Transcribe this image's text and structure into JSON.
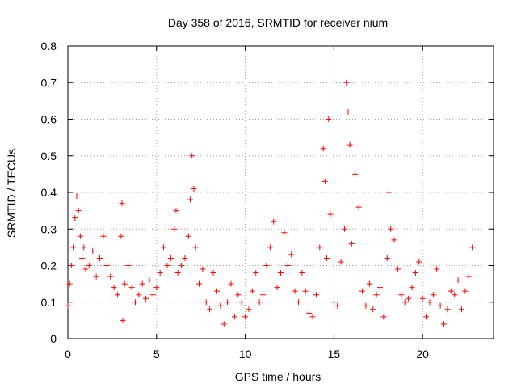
{
  "chart_data": {
    "type": "scatter",
    "title": "Day 358 of 2016, SRMTID for receiver nium",
    "xlabel": "GPS time / hours",
    "ylabel": "SRMTID / TECUs",
    "xlim": [
      0,
      24
    ],
    "ylim": [
      0,
      0.8
    ],
    "xticks": [
      0,
      5,
      10,
      15,
      20
    ],
    "yticks": [
      0,
      0.1,
      0.2,
      0.3,
      0.4,
      0.5,
      0.6,
      0.7,
      0.8
    ],
    "xtick_labels": [
      "0",
      "5",
      "10",
      "15",
      "20"
    ],
    "ytick_labels": [
      "0",
      "0.1",
      "0.2",
      "0.3",
      "0.4",
      "0.5",
      "0.6",
      "0.7",
      "0.8"
    ],
    "marker": "+",
    "color": "#ff0000",
    "grid": true,
    "series": [
      {
        "name": "SRMTID",
        "x": [
          0.0,
          0.1,
          0.2,
          0.3,
          0.4,
          0.5,
          0.6,
          0.7,
          0.8,
          0.9,
          1.0,
          1.2,
          1.4,
          1.6,
          1.8,
          2.0,
          2.2,
          2.4,
          2.6,
          2.8,
          3.0,
          3.05,
          3.1,
          3.2,
          3.4,
          3.6,
          3.8,
          4.0,
          4.2,
          4.4,
          4.6,
          4.8,
          5.0,
          5.2,
          5.4,
          5.6,
          5.8,
          6.0,
          6.1,
          6.2,
          6.4,
          6.6,
          6.8,
          6.9,
          7.0,
          7.1,
          7.2,
          7.4,
          7.6,
          7.8,
          8.0,
          8.2,
          8.4,
          8.6,
          8.8,
          9.0,
          9.2,
          9.4,
          9.6,
          9.8,
          10.0,
          10.2,
          10.4,
          10.6,
          10.8,
          11.0,
          11.2,
          11.4,
          11.6,
          11.8,
          12.0,
          12.2,
          12.4,
          12.6,
          12.8,
          13.0,
          13.2,
          13.4,
          13.6,
          13.8,
          14.0,
          14.2,
          14.4,
          14.5,
          14.6,
          14.7,
          14.8,
          15.0,
          15.2,
          15.4,
          15.6,
          15.7,
          15.8,
          15.9,
          16.0,
          16.2,
          16.4,
          16.6,
          16.8,
          17.0,
          17.2,
          17.4,
          17.6,
          17.8,
          18.0,
          18.1,
          18.2,
          18.4,
          18.6,
          18.8,
          19.0,
          19.2,
          19.4,
          19.6,
          19.8,
          20.0,
          20.2,
          20.4,
          20.6,
          20.8,
          21.0,
          21.2,
          21.4,
          21.6,
          21.8,
          22.0,
          22.2,
          22.4,
          22.6,
          22.8
        ],
        "values": [
          0.09,
          0.15,
          0.2,
          0.25,
          0.33,
          0.39,
          0.35,
          0.28,
          0.22,
          0.25,
          0.19,
          0.2,
          0.24,
          0.17,
          0.22,
          0.28,
          0.2,
          0.17,
          0.14,
          0.12,
          0.28,
          0.37,
          0.05,
          0.15,
          0.2,
          0.14,
          0.1,
          0.12,
          0.15,
          0.11,
          0.16,
          0.12,
          0.14,
          0.18,
          0.25,
          0.2,
          0.22,
          0.3,
          0.35,
          0.18,
          0.2,
          0.22,
          0.28,
          0.38,
          0.5,
          0.41,
          0.25,
          0.15,
          0.19,
          0.1,
          0.08,
          0.18,
          0.13,
          0.09,
          0.04,
          0.1,
          0.15,
          0.06,
          0.12,
          0.1,
          0.06,
          0.08,
          0.13,
          0.18,
          0.1,
          0.12,
          0.2,
          0.25,
          0.32,
          0.14,
          0.18,
          0.29,
          0.2,
          0.23,
          0.13,
          0.1,
          0.18,
          0.13,
          0.07,
          0.06,
          0.12,
          0.25,
          0.52,
          0.43,
          0.22,
          0.6,
          0.34,
          0.1,
          0.09,
          0.21,
          0.3,
          0.7,
          0.62,
          0.53,
          0.26,
          0.45,
          0.36,
          0.13,
          0.09,
          0.15,
          0.08,
          0.12,
          0.14,
          0.06,
          0.22,
          0.4,
          0.3,
          0.27,
          0.19,
          0.12,
          0.1,
          0.11,
          0.14,
          0.18,
          0.21,
          0.11,
          0.06,
          0.1,
          0.12,
          0.19,
          0.09,
          0.04,
          0.08,
          0.13,
          0.12,
          0.16,
          0.08,
          0.13,
          0.17,
          0.25
        ]
      }
    ]
  }
}
